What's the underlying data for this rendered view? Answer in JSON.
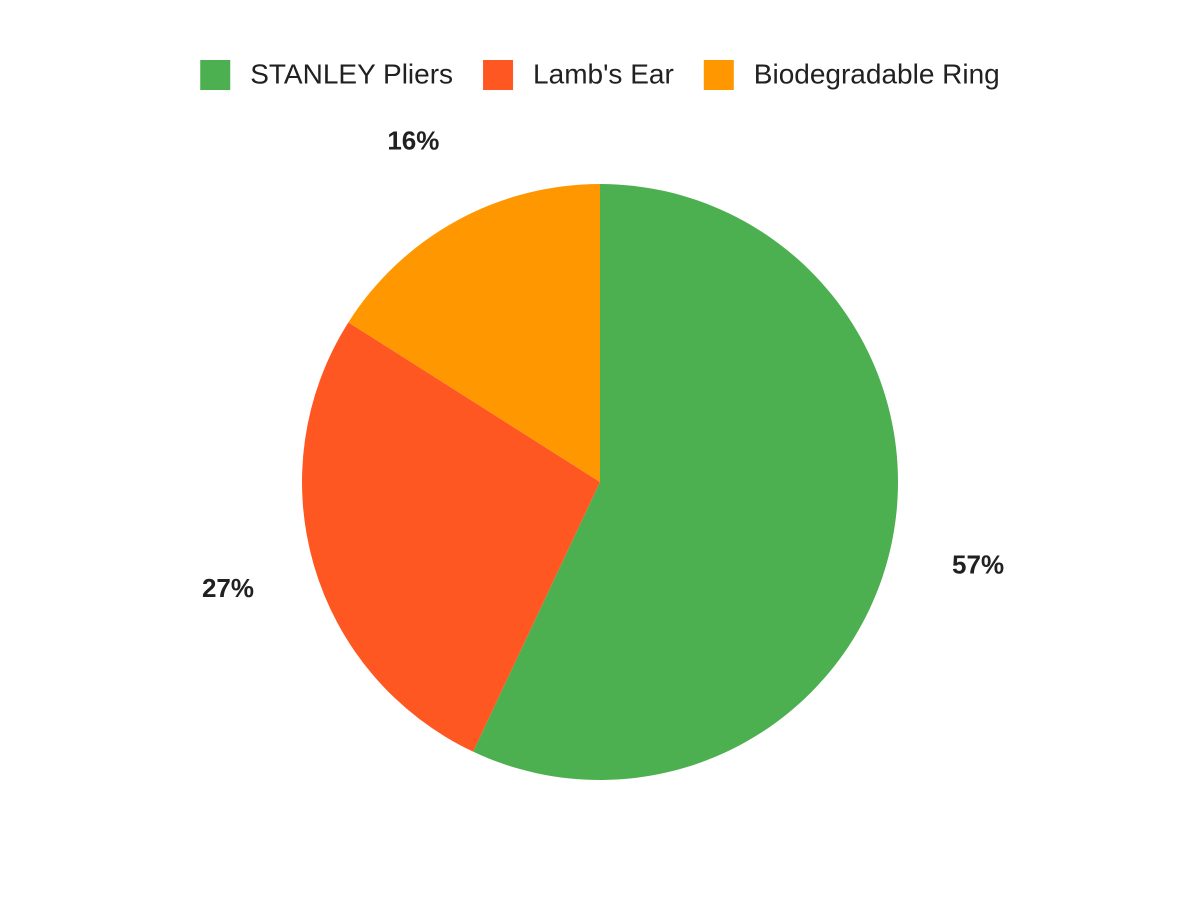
{
  "chart_data": {
    "type": "pie",
    "categories": [
      "STANLEY Pliers",
      "Lamb's Ear",
      "Biodegradable Ring"
    ],
    "values": [
      57,
      27,
      16
    ],
    "value_labels": [
      "57%",
      "27%",
      "16%"
    ],
    "colors": [
      "#4caf50",
      "#ff5722",
      "#ff9800"
    ],
    "legend": "top"
  }
}
